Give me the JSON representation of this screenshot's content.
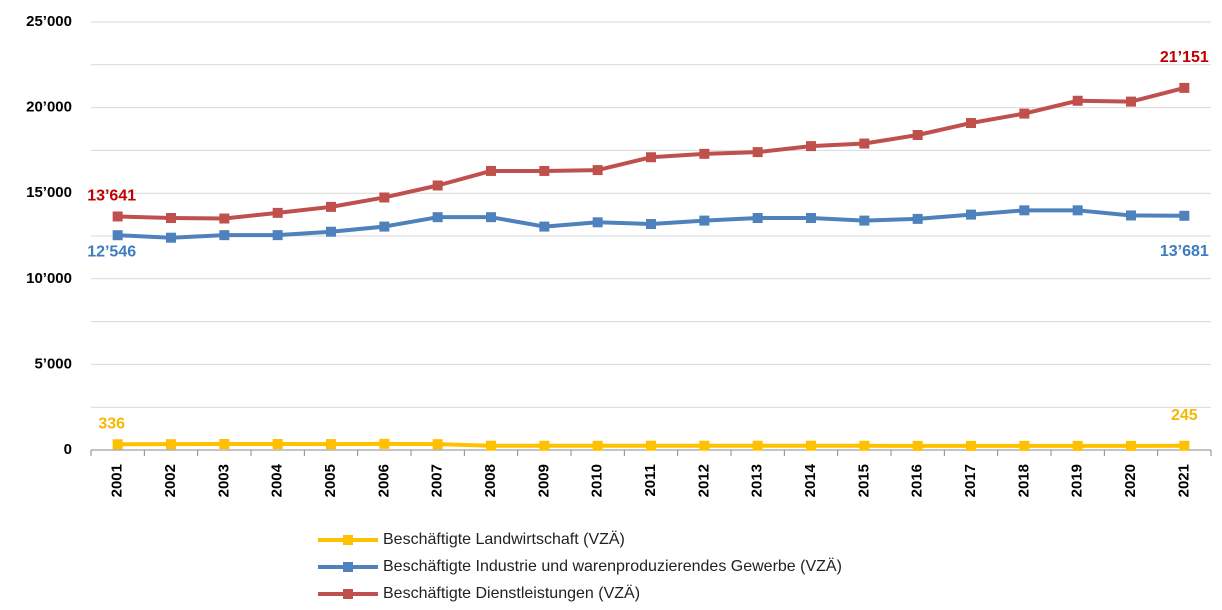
{
  "chart_data": {
    "type": "line",
    "categories": [
      "2001",
      "2002",
      "2003",
      "2004",
      "2005",
      "2006",
      "2007",
      "2008",
      "2009",
      "2010",
      "2011",
      "2012",
      "2013",
      "2014",
      "2015",
      "2016",
      "2017",
      "2018",
      "2019",
      "2020",
      "2021"
    ],
    "ylim": [
      0,
      25000
    ],
    "yticks": [
      0,
      {
        "value": 5000,
        "label": "5’000"
      },
      {
        "value": 10000,
        "label": "10’000"
      },
      {
        "value": 15000,
        "label": "15’000"
      },
      {
        "value": 20000,
        "label": "20’000"
      },
      {
        "value": 25000,
        "label": "25’000"
      }
    ],
    "minor_yticks": [
      2500,
      7500,
      12500,
      17500,
      22500
    ],
    "grid": true,
    "legend": "bottom",
    "series": [
      {
        "name": "Beschäftigte Landwirtschaft (VZÄ)",
        "color": "#ffc000",
        "label_color": "#f5b800",
        "label_position": "above",
        "values": [
          336,
          340,
          350,
          350,
          345,
          360,
          340,
          250,
          245,
          245,
          250,
          250,
          250,
          250,
          245,
          240,
          240,
          240,
          240,
          240,
          245
        ],
        "value_labels": [
          "336",
          null,
          null,
          null,
          null,
          null,
          null,
          null,
          null,
          null,
          null,
          null,
          null,
          null,
          null,
          null,
          null,
          null,
          null,
          null,
          "245"
        ]
      },
      {
        "name": "Beschäftigte Industrie und warenproduzierendes Gewerbe (VZÄ)",
        "color": "#4f81bd",
        "label_color": "#3d7cc0",
        "label_position": "below",
        "values": [
          12546,
          12400,
          12550,
          12550,
          12750,
          13050,
          13600,
          13600,
          13050,
          13300,
          13200,
          13400,
          13550,
          13550,
          13400,
          13500,
          13750,
          14000,
          14000,
          13700,
          13681
        ],
        "value_labels": [
          "12’546",
          null,
          null,
          null,
          null,
          null,
          null,
          null,
          null,
          null,
          null,
          null,
          null,
          null,
          null,
          null,
          null,
          null,
          null,
          null,
          "13’681"
        ]
      },
      {
        "name": "Beschäftigte Dienstleistungen (VZÄ)",
        "color": "#c0504d",
        "label_color": "#c00000",
        "label_position": "above",
        "values": [
          13641,
          13550,
          13520,
          13850,
          14200,
          14750,
          15450,
          16300,
          16300,
          16350,
          17100,
          17300,
          17400,
          17750,
          17900,
          18400,
          19100,
          19650,
          20400,
          20350,
          21151
        ],
        "value_labels": [
          "13’641",
          null,
          null,
          null,
          null,
          null,
          null,
          null,
          null,
          null,
          null,
          null,
          null,
          null,
          null,
          null,
          null,
          null,
          null,
          null,
          "21’151"
        ]
      }
    ]
  }
}
